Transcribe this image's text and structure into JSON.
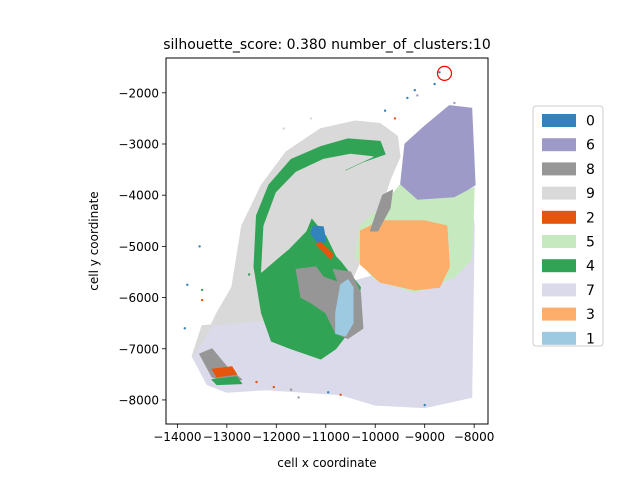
{
  "chart_data": {
    "type": "scatter",
    "title": "silhouette_score: 0.380 number_of_clusters:10",
    "xlabel": "cell x coordinate",
    "ylabel": "cell y coordinate",
    "xlim": [
      -14230,
      -7720
    ],
    "ylim": [
      -8470,
      -1320
    ],
    "xticks": [
      -14000,
      -13000,
      -12000,
      -11000,
      -10000,
      -9000,
      -8000
    ],
    "yticks": [
      -8000,
      -7000,
      -6000,
      -5000,
      -4000,
      -3000,
      -2000
    ],
    "xtick_labels": [
      "−14000",
      "−13000",
      "−12000",
      "−11000",
      "−10000",
      "−9000",
      "−8000"
    ],
    "ytick_labels": [
      "−8000",
      "−7000",
      "−6000",
      "−5000",
      "−4000",
      "−3000",
      "−2000"
    ],
    "legend_position": "right",
    "grid": false,
    "series": [
      {
        "name": "0",
        "color": "#3182bd"
      },
      {
        "name": "6",
        "color": "#9e9ac8"
      },
      {
        "name": "8",
        "color": "#969696"
      },
      {
        "name": "9",
        "color": "#d9d9d9"
      },
      {
        "name": "2",
        "color": "#e6550d"
      },
      {
        "name": "5",
        "color": "#c7e9c0"
      },
      {
        "name": "4",
        "color": "#31a354"
      },
      {
        "name": "7",
        "color": "#dadaeb"
      },
      {
        "name": "3",
        "color": "#fdae6b"
      },
      {
        "name": "1",
        "color": "#9ecae1"
      }
    ],
    "regions": [
      {
        "series": "7",
        "polygon": [
          [
            -13700,
            -7150
          ],
          [
            -13500,
            -6550
          ],
          [
            -12200,
            -6450
          ],
          [
            -11200,
            -6300
          ],
          [
            -10500,
            -5700
          ],
          [
            -9800,
            -5500
          ],
          [
            -9300,
            -4400
          ],
          [
            -8100,
            -3700
          ],
          [
            -8000,
            -4600
          ],
          [
            -8050,
            -7950
          ],
          [
            -9000,
            -8150
          ],
          [
            -10000,
            -8100
          ],
          [
            -10700,
            -7900
          ],
          [
            -12200,
            -7800
          ],
          [
            -13000,
            -7850
          ],
          [
            -13400,
            -7700
          ]
        ]
      },
      {
        "series": "9",
        "polygon": [
          [
            -12900,
            -5800
          ],
          [
            -12700,
            -4600
          ],
          [
            -12300,
            -3800
          ],
          [
            -11800,
            -3150
          ],
          [
            -11100,
            -2700
          ],
          [
            -10400,
            -2550
          ],
          [
            -9900,
            -2600
          ],
          [
            -9550,
            -2850
          ],
          [
            -9500,
            -3250
          ],
          [
            -9700,
            -3700
          ],
          [
            -9900,
            -4300
          ],
          [
            -9950,
            -4900
          ],
          [
            -10200,
            -5100
          ],
          [
            -10500,
            -5700
          ],
          [
            -11200,
            -6300
          ],
          [
            -12200,
            -6450
          ],
          [
            -13500,
            -6550
          ],
          [
            -13700,
            -7150
          ],
          [
            -13450,
            -6800
          ],
          [
            -13200,
            -6300
          ]
        ]
      },
      {
        "series": "6",
        "polygon": [
          [
            -9500,
            -3900
          ],
          [
            -9400,
            -3000
          ],
          [
            -9000,
            -2650
          ],
          [
            -8500,
            -2250
          ],
          [
            -8050,
            -2300
          ],
          [
            -7980,
            -3800
          ],
          [
            -8400,
            -4050
          ],
          [
            -9150,
            -4100
          ]
        ]
      },
      {
        "series": "5",
        "polygon": [
          [
            -9750,
            -4100
          ],
          [
            -9500,
            -3800
          ],
          [
            -9150,
            -4100
          ],
          [
            -8400,
            -4050
          ],
          [
            -8000,
            -3850
          ],
          [
            -8050,
            -5250
          ],
          [
            -8400,
            -5600
          ],
          [
            -9200,
            -5900
          ],
          [
            -10000,
            -5650
          ],
          [
            -10400,
            -5200
          ],
          [
            -10300,
            -4600
          ]
        ]
      },
      {
        "series": "3",
        "polygon": [
          [
            -10300,
            -4700
          ],
          [
            -9900,
            -4500
          ],
          [
            -9000,
            -4500
          ],
          [
            -8550,
            -4600
          ],
          [
            -8500,
            -5400
          ],
          [
            -8700,
            -5800
          ],
          [
            -9200,
            -5850
          ],
          [
            -9900,
            -5700
          ],
          [
            -10300,
            -5350
          ]
        ]
      },
      {
        "series": "4",
        "polygon": [
          [
            -12100,
            -6850
          ],
          [
            -12300,
            -6300
          ],
          [
            -12450,
            -5400
          ],
          [
            -12400,
            -4400
          ],
          [
            -12150,
            -3800
          ],
          [
            -11700,
            -3300
          ],
          [
            -11100,
            -3050
          ],
          [
            -10550,
            -2900
          ],
          [
            -9900,
            -2950
          ],
          [
            -9800,
            -3200
          ],
          [
            -10250,
            -3350
          ],
          [
            -10800,
            -3600
          ],
          [
            -11150,
            -4000
          ],
          [
            -11300,
            -4450
          ],
          [
            -11000,
            -4800
          ],
          [
            -10800,
            -5200
          ],
          [
            -10700,
            -5300
          ],
          [
            -10300,
            -5800
          ],
          [
            -10400,
            -6500
          ],
          [
            -10800,
            -7000
          ],
          [
            -11100,
            -7200
          ],
          [
            -11700,
            -7000
          ]
        ]
      },
      {
        "series": "9",
        "polygon": [
          [
            -12300,
            -5500
          ],
          [
            -12250,
            -4600
          ],
          [
            -12000,
            -3950
          ],
          [
            -11600,
            -3550
          ],
          [
            -11050,
            -3300
          ],
          [
            -10500,
            -3200
          ],
          [
            -10050,
            -3250
          ],
          [
            -10600,
            -3500
          ],
          [
            -10950,
            -3850
          ],
          [
            -11250,
            -4350
          ],
          [
            -11400,
            -4700
          ],
          [
            -11750,
            -5050
          ],
          [
            -12000,
            -5250
          ]
        ]
      },
      {
        "series": "8",
        "polygon": [
          [
            -11500,
            -6000
          ],
          [
            -11600,
            -5450
          ],
          [
            -11200,
            -5400
          ],
          [
            -11050,
            -5600
          ],
          [
            -10750,
            -5700
          ],
          [
            -10850,
            -5450
          ],
          [
            -10500,
            -5500
          ],
          [
            -10300,
            -5900
          ],
          [
            -10250,
            -6600
          ],
          [
            -10550,
            -6800
          ],
          [
            -10800,
            -6700
          ],
          [
            -11000,
            -6300
          ],
          [
            -11300,
            -6100
          ]
        ]
      },
      {
        "series": "1",
        "polygon": [
          [
            -10800,
            -6300
          ],
          [
            -10700,
            -5750
          ],
          [
            -10550,
            -5650
          ],
          [
            -10450,
            -5800
          ],
          [
            -10450,
            -6500
          ],
          [
            -10600,
            -6750
          ],
          [
            -10800,
            -6700
          ]
        ]
      },
      {
        "series": "0",
        "polygon": [
          [
            -11300,
            -4750
          ],
          [
            -11250,
            -4600
          ],
          [
            -11050,
            -4620
          ],
          [
            -11000,
            -4900
          ],
          [
            -11150,
            -4950
          ]
        ]
      },
      {
        "series": "2",
        "polygon": [
          [
            -11200,
            -4950
          ],
          [
            -11100,
            -4920
          ],
          [
            -10850,
            -5150
          ],
          [
            -10900,
            -5250
          ],
          [
            -11050,
            -5100
          ]
        ]
      },
      {
        "series": "8",
        "polygon": [
          [
            -10100,
            -4700
          ],
          [
            -9850,
            -4000
          ],
          [
            -9650,
            -3900
          ],
          [
            -9700,
            -4250
          ],
          [
            -9950,
            -4700
          ]
        ]
      },
      {
        "series": "8",
        "polygon": [
          [
            -13550,
            -7100
          ],
          [
            -13300,
            -7000
          ],
          [
            -13000,
            -7350
          ],
          [
            -12700,
            -7600
          ],
          [
            -12950,
            -7650
          ],
          [
            -13300,
            -7550
          ]
        ]
      },
      {
        "series": "2",
        "polygon": [
          [
            -13300,
            -7400
          ],
          [
            -12900,
            -7350
          ],
          [
            -12800,
            -7500
          ],
          [
            -13200,
            -7550
          ]
        ]
      },
      {
        "series": "4",
        "polygon": [
          [
            -13300,
            -7600
          ],
          [
            -12800,
            -7550
          ],
          [
            -12700,
            -7680
          ],
          [
            -13200,
            -7700
          ]
        ]
      }
    ],
    "scatter_points": [
      {
        "series": "0",
        "x": -8700,
        "y": -1600
      },
      {
        "series": "0",
        "x": -8800,
        "y": -1830
      },
      {
        "series": "0",
        "x": -9200,
        "y": -1950
      },
      {
        "series": "0",
        "x": -9350,
        "y": -2100
      },
      {
        "series": "0",
        "x": -9800,
        "y": -2350
      },
      {
        "series": "0",
        "x": -13800,
        "y": -5750
      },
      {
        "series": "0",
        "x": -13850,
        "y": -6600
      },
      {
        "series": "0",
        "x": -13550,
        "y": -5000
      },
      {
        "series": "0",
        "x": -10950,
        "y": -7850
      },
      {
        "series": "0",
        "x": -9000,
        "y": -8100
      },
      {
        "series": "2",
        "x": -9600,
        "y": -2500
      },
      {
        "series": "2",
        "x": -13500,
        "y": -6050
      },
      {
        "series": "2",
        "x": -12400,
        "y": -7650
      },
      {
        "series": "2",
        "x": -12050,
        "y": -7750
      },
      {
        "series": "2",
        "x": -10700,
        "y": -7900
      },
      {
        "series": "4",
        "x": -12550,
        "y": -5550
      },
      {
        "series": "4",
        "x": -13500,
        "y": -5850
      },
      {
        "series": "4",
        "x": -11700,
        "y": -6550
      },
      {
        "series": "6",
        "x": -8400,
        "y": -2200
      },
      {
        "series": "6",
        "x": -9150,
        "y": -2050
      },
      {
        "series": "9",
        "x": -11300,
        "y": -2500
      },
      {
        "series": "9",
        "x": -11850,
        "y": -2700
      },
      {
        "series": "8",
        "x": -11700,
        "y": -7800
      },
      {
        "series": "8",
        "x": -11550,
        "y": -7950
      }
    ],
    "annotation": {
      "type": "circle",
      "x": -8600,
      "y": -1620,
      "color": "#ff0000"
    }
  }
}
